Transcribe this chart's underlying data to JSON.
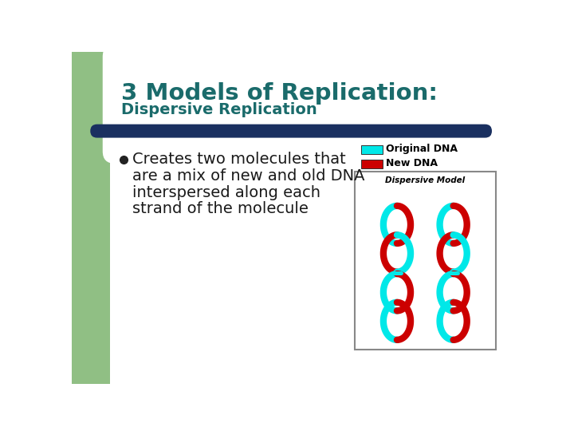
{
  "bg_color": "#ffffff",
  "left_panel_color": "#90bf84",
  "title_main": "3 Models of Replication:",
  "title_sub": "Dispersive Replication",
  "title_color": "#1a6b6b",
  "divider_color": "#1a3060",
  "bullet_text_lines": [
    "Creates two molecules that",
    "are a mix of new and old DNA",
    "interspersed along each",
    "strand of the molecule"
  ],
  "text_color": "#1a1a1a",
  "legend_orig_color": "#00e8e8",
  "legend_new_color": "#cc0000",
  "legend_orig_label": "Original DNA",
  "legend_new_label": "New DNA",
  "dispersive_label": "Dispersive Model",
  "img_box_color": "#ffffff",
  "img_border_color": "#888888",
  "cyan": "#00e8e8",
  "red": "#cc0000"
}
